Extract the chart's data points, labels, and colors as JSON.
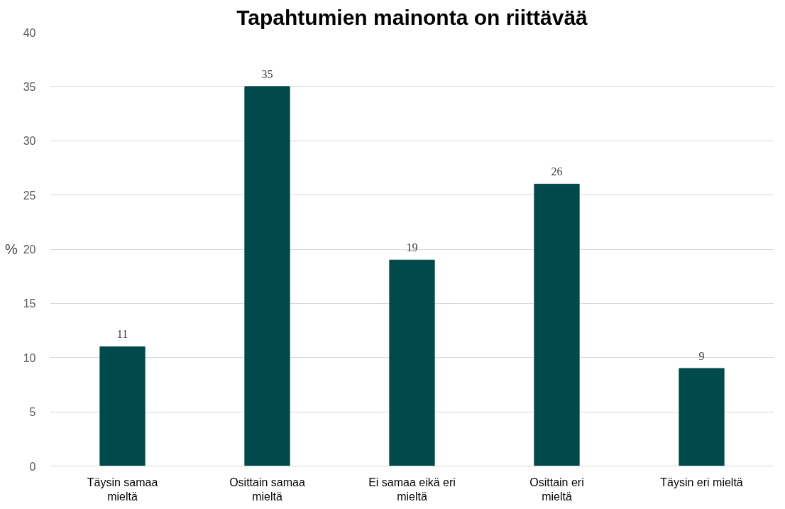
{
  "chart_data": {
    "type": "bar",
    "title": "Tapahtumien mainonta on riittävää",
    "ylabel": "%",
    "categories": [
      "Täysin samaa mieltä",
      "Osittain samaa mieltä",
      "Ei samaa eikä eri mieltä",
      "Osittain eri mieltä",
      "Täysin eri mieltä"
    ],
    "values": [
      11,
      35,
      19,
      26,
      9
    ],
    "color": "#02494b",
    "ylim": [
      0,
      40
    ],
    "yticks": [
      0,
      5,
      10,
      15,
      20,
      25,
      30,
      35,
      40
    ],
    "grid": "y",
    "data_labels": true,
    "legend": false
  }
}
